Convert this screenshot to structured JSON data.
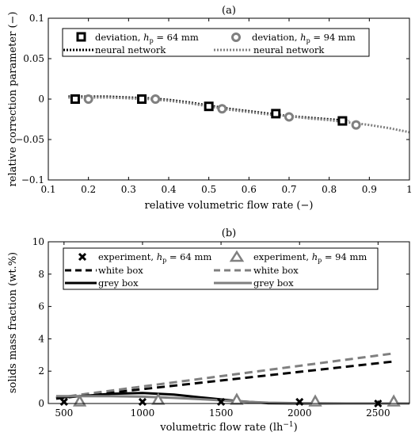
{
  "chart_data": [
    {
      "type": "scatter",
      "title": "(a)",
      "xlabel": "relative volumetric flow rate (−)",
      "ylabel": "relative correction parameter (−)",
      "xlim": [
        0.1,
        1
      ],
      "ylim": [
        -0.1,
        0.1
      ],
      "xticks": [
        0.1,
        0.2,
        0.3,
        0.4,
        0.5,
        0.6,
        0.7,
        0.8,
        0.9,
        1
      ],
      "xtick_labels": [
        "0.1",
        "0.2",
        "0.3",
        "0.4",
        "0.5",
        "0.6",
        "0.7",
        "0.8",
        "0.9",
        "1"
      ],
      "yticks": [
        -0.1,
        -0.05,
        0,
        0.05,
        0.1
      ],
      "ytick_labels": [
        "−0.1",
        "−0.05",
        "0",
        "0.05",
        "0.1"
      ],
      "grid": false,
      "legend_position": "top",
      "legend": {
        "s1_marker": "deviation, ",
        "s1_line": "neural network",
        "s2_marker": "deviation, ",
        "s2_line": "neural network",
        "h": "h",
        "sub": "p",
        "s1_value": " = 64 mm",
        "s2_value": " = 94 mm"
      },
      "series": [
        {
          "kind": "marker",
          "marker": "hollow-square",
          "color": "#000000",
          "x": [
            0.167,
            0.333,
            0.5,
            0.667,
            0.833
          ],
          "y": [
            0.0,
            0.0,
            -0.009,
            -0.018,
            -0.027
          ]
        },
        {
          "kind": "marker",
          "marker": "hollow-circle",
          "color": "#808080",
          "x": [
            0.2,
            0.367,
            0.533,
            0.7,
            0.867
          ],
          "y": [
            0.0,
            0.0,
            -0.012,
            -0.022,
            -0.032
          ]
        },
        {
          "kind": "line",
          "style": "dotted",
          "color": "#000000",
          "x": [
            0.15,
            0.2,
            0.25,
            0.3,
            0.35,
            0.4,
            0.45,
            0.5,
            0.55,
            0.6,
            0.65,
            0.7,
            0.75,
            0.8,
            0.85
          ],
          "y": [
            0.003,
            0.003,
            0.003,
            0.002,
            0.001,
            -0.001,
            -0.004,
            -0.008,
            -0.012,
            -0.015,
            -0.018,
            -0.021,
            -0.023,
            -0.025,
            -0.027
          ]
        },
        {
          "kind": "line",
          "style": "dotted",
          "color": "#808080",
          "x": [
            0.15,
            0.2,
            0.25,
            0.3,
            0.35,
            0.4,
            0.45,
            0.5,
            0.55,
            0.6,
            0.65,
            0.7,
            0.75,
            0.8,
            0.85,
            0.9,
            0.95,
            1.0
          ],
          "y": [
            0.002,
            0.002,
            0.002,
            0.001,
            0.0,
            -0.002,
            -0.005,
            -0.009,
            -0.013,
            -0.016,
            -0.019,
            -0.021,
            -0.024,
            -0.026,
            -0.029,
            -0.032,
            -0.036,
            -0.041
          ]
        }
      ]
    },
    {
      "type": "line",
      "title": "(b)",
      "xlabel": "volumetric flow rate (lh",
      "xlabel_sup": "−1",
      "xlabel_end": ")",
      "ylabel": "solids mass fraction (wt.%)",
      "xlim": [
        400,
        2700
      ],
      "ylim": [
        0,
        10
      ],
      "xticks": [
        500,
        1000,
        1500,
        2000,
        2500
      ],
      "xtick_labels": [
        "500",
        "1000",
        "1500",
        "2000",
        "2500"
      ],
      "yticks": [
        0,
        2,
        4,
        6,
        8,
        10
      ],
      "ytick_labels": [
        "0",
        "2",
        "4",
        "6",
        "8",
        "10"
      ],
      "grid": false,
      "legend_position": "top",
      "legend": {
        "s1_marker": "experiment, ",
        "s1_white": "white box",
        "s1_grey": "grey box",
        "s2_marker": "experiment, ",
        "s2_white": "white box",
        "s2_grey": "grey box",
        "h": "h",
        "sub": "p",
        "s1_value": " = 64 mm",
        "s2_value": " = 94 mm"
      },
      "series": [
        {
          "kind": "marker",
          "marker": "x",
          "color": "#000000",
          "x": [
            500,
            1000,
            1500,
            2000,
            2500
          ],
          "y": [
            0.1,
            0.1,
            0.1,
            0.1,
            0.0
          ]
        },
        {
          "kind": "marker",
          "marker": "hollow-triangle",
          "color": "#808080",
          "x": [
            600,
            1100,
            1600,
            2100,
            2600
          ],
          "y": [
            0.1,
            0.2,
            0.2,
            0.1,
            0.1
          ]
        },
        {
          "kind": "line",
          "style": "dashed",
          "color": "#000000",
          "x": [
            450,
            2600
          ],
          "y": [
            0.3,
            2.6
          ]
        },
        {
          "kind": "line",
          "style": "dashed",
          "color": "#808080",
          "x": [
            450,
            2600
          ],
          "y": [
            0.35,
            3.1
          ]
        },
        {
          "kind": "line",
          "style": "solid",
          "color": "#000000",
          "x": [
            450,
            600,
            800,
            1000,
            1200,
            1400,
            1600,
            1800,
            2000,
            2300,
            2700
          ],
          "y": [
            0.35,
            0.45,
            0.6,
            0.65,
            0.55,
            0.35,
            0.15,
            0.02,
            0.0,
            0.0,
            0.0
          ]
        },
        {
          "kind": "line",
          "style": "solid",
          "color": "#808080",
          "x": [
            450,
            600,
            800,
            1000,
            1200,
            1400,
            1600,
            1800,
            2000,
            2300,
            2700
          ],
          "y": [
            0.45,
            0.45,
            0.45,
            0.42,
            0.35,
            0.25,
            0.13,
            0.05,
            0.02,
            0.0,
            0.0
          ]
        }
      ]
    }
  ]
}
